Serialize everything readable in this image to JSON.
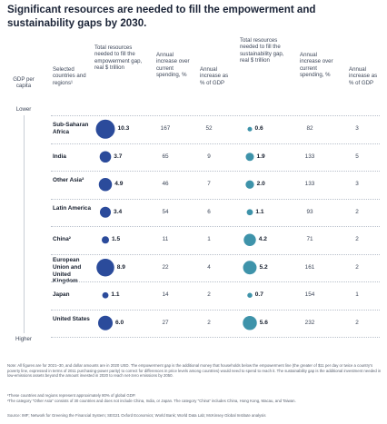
{
  "title": "Significant resources are needed to fill the empowerment and sustainability gaps by 2030.",
  "gdp_axis": {
    "label": "GDP per capita",
    "top": "Lower",
    "bottom": "Higher"
  },
  "headers": {
    "region": "Selected countries and regions¹",
    "emp_total": "Total resources needed to fill the empowerment gap, real $ trillion",
    "emp_increase": "Annual increase over current spending, %",
    "emp_gdp": "Annual increase as % of GDP",
    "sus_total": "Total resources needed to fill the sustainability gap, real $ trillion",
    "sus_increase": "Annual increase over current spending, %",
    "sus_gdp": "Annual increase as % of GDP"
  },
  "chart_data": {
    "type": "table",
    "rows": [
      {
        "region": "Sub-Saharan Africa",
        "emp_total": "10.3",
        "emp_increase": "167",
        "emp_gdp": "52",
        "sus_total": "0.6",
        "sus_increase": "82",
        "sus_gdp": "3"
      },
      {
        "region": "India",
        "emp_total": "3.7",
        "emp_increase": "65",
        "emp_gdp": "9",
        "sus_total": "1.9",
        "sus_increase": "133",
        "sus_gdp": "5"
      },
      {
        "region": "Other Asia²",
        "emp_total": "4.9",
        "emp_increase": "46",
        "emp_gdp": "7",
        "sus_total": "2.0",
        "sus_increase": "133",
        "sus_gdp": "3"
      },
      {
        "region": "Latin America",
        "emp_total": "3.4",
        "emp_increase": "54",
        "emp_gdp": "6",
        "sus_total": "1.1",
        "sus_increase": "93",
        "sus_gdp": "2"
      },
      {
        "region": "China²",
        "emp_total": "1.5",
        "emp_increase": "11",
        "emp_gdp": "1",
        "sus_total": "4.2",
        "sus_increase": "71",
        "sus_gdp": "2"
      },
      {
        "region": "European Union and United Kingdom",
        "emp_total": "8.9",
        "emp_increase": "22",
        "emp_gdp": "4",
        "sus_total": "5.2",
        "sus_increase": "161",
        "sus_gdp": "2"
      },
      {
        "region": "Japan",
        "emp_total": "1.1",
        "emp_increase": "14",
        "emp_gdp": "2",
        "sus_total": "0.7",
        "sus_increase": "154",
        "sus_gdp": "1"
      },
      {
        "region": "United States",
        "emp_total": "6.0",
        "emp_increase": "27",
        "emp_gdp": "2",
        "sus_total": "5.6",
        "sus_increase": "232",
        "sus_gdp": "2"
      }
    ],
    "colors": {
      "empowerment": "#2b4b9b",
      "sustainability": "#3e93aa"
    }
  },
  "notes": {
    "note": "Note: All figures are for 2021–30, and dollar amounts are in 2020 USD. The empowerment gap is the additional money that households below the empowerment line (the greater of $11 per day or twice a country's poverty line, expressed in terms of 2011 purchasing-power parity) to correct for differences in price levels among countries) would need to spend to reach it. The sustainability gap is the additional investment needed in low-emissions assets beyond the amount invested in 2020 to reach net-zero emissions by 2050.",
    "footnote1": "¹These countries and regions represent approximately 80% of global GDP.",
    "footnote2": "²The category \"Other Asia\" consists of 30 countries and does not include China, India, or Japan. The category \"China\" includes China, Hong Kong, Macau, and Taiwan.",
    "source": "Source: IMF; Network for Greening the Financial System; SEG21 Oxford Economics; World Bank; World Data Lab; McKinsey Global Institute analysis"
  }
}
